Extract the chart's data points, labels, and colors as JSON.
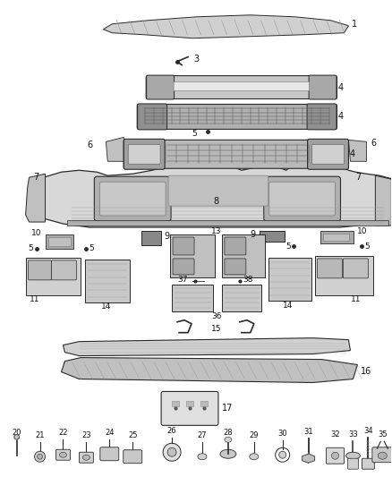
{
  "background_color": "#ffffff",
  "line_color": "#2a2a2a",
  "fig_w": 4.38,
  "fig_h": 5.33,
  "dpi": 100
}
